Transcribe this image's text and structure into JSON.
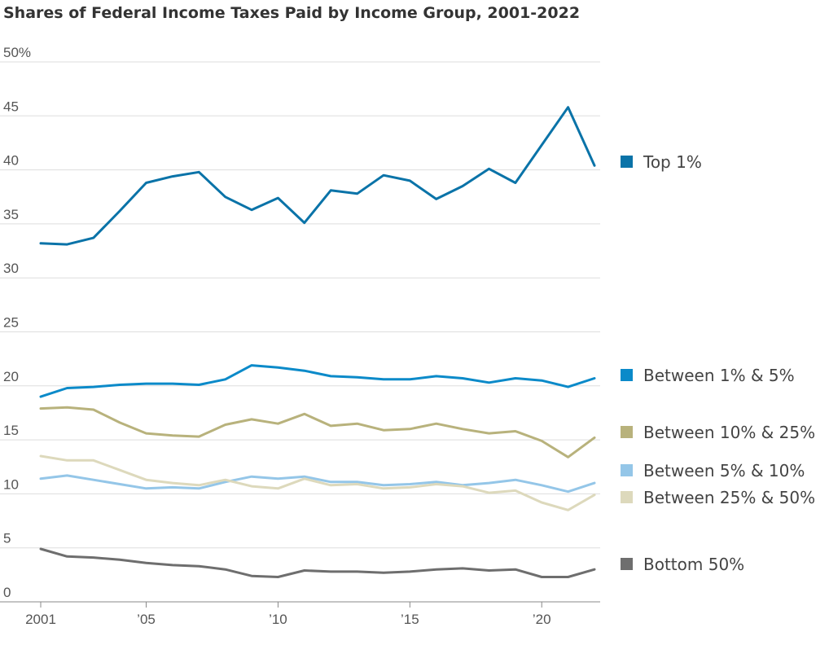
{
  "chart_data": {
    "type": "line",
    "title": "Shares of Federal Income Taxes Paid by Income Group, 2001-2022",
    "xlabel": "",
    "ylabel": "",
    "x": [
      2001,
      2002,
      2003,
      2004,
      2005,
      2006,
      2007,
      2008,
      2009,
      2010,
      2011,
      2012,
      2013,
      2014,
      2015,
      2016,
      2017,
      2018,
      2019,
      2020,
      2021,
      2022
    ],
    "xlim": [
      2001,
      2022
    ],
    "ylim": [
      0,
      50
    ],
    "x_ticks": [
      {
        "value": 2001,
        "label": "2001"
      },
      {
        "value": 2005,
        "label": "’05"
      },
      {
        "value": 2010,
        "label": "’10"
      },
      {
        "value": 2015,
        "label": "’15"
      },
      {
        "value": 2020,
        "label": "’20"
      }
    ],
    "y_ticks": [
      {
        "value": 0,
        "label": "0"
      },
      {
        "value": 5,
        "label": "5"
      },
      {
        "value": 10,
        "label": "10"
      },
      {
        "value": 15,
        "label": "15"
      },
      {
        "value": 20,
        "label": "20"
      },
      {
        "value": 25,
        "label": "25"
      },
      {
        "value": 30,
        "label": "30"
      },
      {
        "value": 35,
        "label": "35"
      },
      {
        "value": 40,
        "label": "40"
      },
      {
        "value": 45,
        "label": "45"
      },
      {
        "value": 50,
        "label": "50%"
      }
    ],
    "grid": true,
    "legend": "right",
    "series": [
      {
        "name": "Top 1%",
        "color": "#0a73a8",
        "values": [
          33.2,
          33.1,
          33.7,
          36.2,
          38.8,
          39.4,
          39.8,
          37.5,
          36.3,
          37.4,
          35.1,
          38.1,
          37.8,
          39.5,
          39.0,
          37.3,
          38.5,
          40.1,
          38.8,
          42.3,
          45.8,
          40.4
        ]
      },
      {
        "name": "Between 1% & 5%",
        "color": "#0b8ac9",
        "values": [
          19.0,
          19.8,
          19.9,
          20.1,
          20.2,
          20.2,
          20.1,
          20.6,
          21.9,
          21.7,
          21.4,
          20.9,
          20.8,
          20.6,
          20.6,
          20.9,
          20.7,
          20.3,
          20.7,
          20.5,
          19.9,
          20.7
        ]
      },
      {
        "name": "Between 10% & 25%",
        "color": "#b8b27c",
        "values": [
          17.9,
          18.0,
          17.8,
          16.6,
          15.6,
          15.4,
          15.3,
          16.4,
          16.9,
          16.5,
          17.4,
          16.3,
          16.5,
          15.9,
          16.0,
          16.5,
          16.0,
          15.6,
          15.8,
          14.9,
          13.4,
          15.2
        ]
      },
      {
        "name": "Between 5% & 10%",
        "color": "#94c6e8",
        "values": [
          11.4,
          11.7,
          11.3,
          10.9,
          10.5,
          10.6,
          10.5,
          11.1,
          11.6,
          11.4,
          11.6,
          11.1,
          11.1,
          10.8,
          10.9,
          11.1,
          10.8,
          11.0,
          11.3,
          10.8,
          10.2,
          11.0
        ]
      },
      {
        "name": "Between 25% & 50%",
        "color": "#ddd9bc",
        "values": [
          13.5,
          13.1,
          13.1,
          12.2,
          11.3,
          11.0,
          10.8,
          11.3,
          10.7,
          10.5,
          11.4,
          10.8,
          10.9,
          10.5,
          10.6,
          10.9,
          10.7,
          10.1,
          10.3,
          9.2,
          8.5,
          9.9
        ]
      },
      {
        "name": "Bottom 50%",
        "color": "#6e6e6e",
        "values": [
          4.9,
          4.2,
          4.1,
          3.9,
          3.6,
          3.4,
          3.3,
          3.0,
          2.4,
          2.3,
          2.9,
          2.8,
          2.8,
          2.7,
          2.8,
          3.0,
          3.1,
          2.9,
          3.0,
          2.3,
          2.3,
          3.0
        ]
      }
    ]
  }
}
